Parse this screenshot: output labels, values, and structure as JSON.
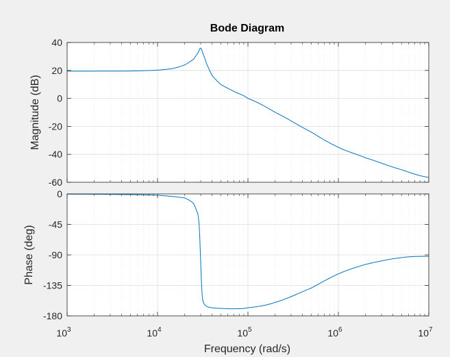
{
  "chart_data": {
    "type": "line",
    "title": "Bode Diagram",
    "xlabel": "Frequency  (rad/s)",
    "x_scale": "log",
    "xlim": [
      1000,
      10000000
    ],
    "x_ticks": [
      {
        "base": "10",
        "exp": "3"
      },
      {
        "base": "10",
        "exp": "4"
      },
      {
        "base": "10",
        "exp": "5"
      },
      {
        "base": "10",
        "exp": "6"
      },
      {
        "base": "10",
        "exp": "7"
      }
    ],
    "grid": true,
    "line_color": "#0072bd",
    "plots": [
      {
        "id": "magnitude",
        "ylabel": "Magnitude (dB)",
        "ylim": [
          -60,
          40
        ],
        "yticks": [
          "40",
          "20",
          "0",
          "-20",
          "-40",
          "-60"
        ],
        "ytick_values": [
          40,
          20,
          0,
          -20,
          -40,
          -60
        ],
        "series": [
          {
            "x": [
              1000,
              2000,
              5000,
              10000,
              15000,
              20000,
              25000,
              28000,
              30000,
              32000,
              35000,
              40000,
              50000,
              70000,
              100000,
              200000,
              500000,
              1000000,
              2000000,
              5000000,
              10000000
            ],
            "y": [
              19.5,
              19.5,
              19.6,
              20.2,
              21.5,
              24,
              28,
              32.5,
              36,
              31.5,
              24.5,
              16.5,
              10,
              5,
              0,
              -10,
              -24,
              -35,
              -42.5,
              -51,
              -56.5
            ]
          }
        ]
      },
      {
        "id": "phase",
        "ylabel": "Phase (deg)",
        "ylim": [
          -180,
          0
        ],
        "yticks": [
          "0",
          "-45",
          "-90",
          "-135",
          "-180"
        ],
        "ytick_values": [
          0,
          -45,
          -90,
          -135,
          -180
        ],
        "series": [
          {
            "x": [
              1000,
              3000,
              10000,
              20000,
              25000,
              28000,
              29000,
              30000,
              31000,
              32000,
              35000,
              40000,
              50000,
              70000,
              100000,
              200000,
              500000,
              1000000,
              2000000,
              5000000,
              10000000
            ],
            "y": [
              -0.3,
              -0.7,
              -2,
              -6,
              -14,
              -30,
              -50,
              -100,
              -145,
              -160,
              -166,
              -168,
              -169,
              -169.5,
              -168,
              -160,
              -139,
              -118,
              -104,
              -94,
              -92
            ]
          }
        ]
      }
    ]
  }
}
